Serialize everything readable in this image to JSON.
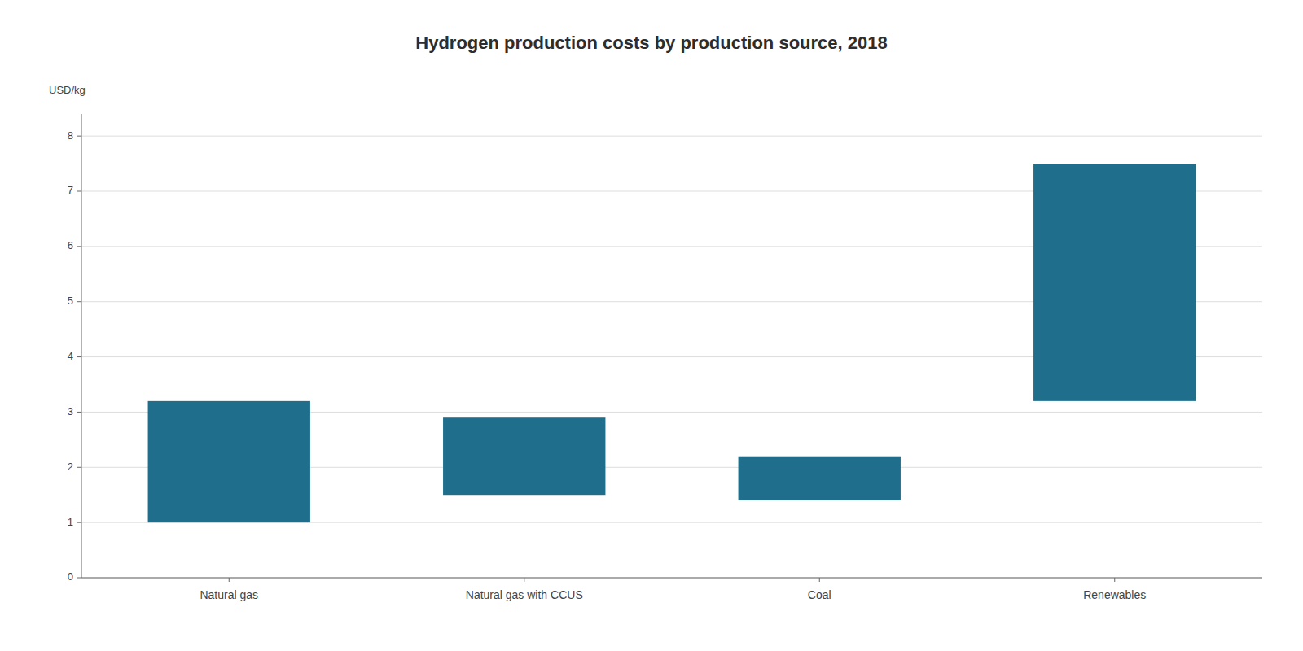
{
  "chart_data": {
    "type": "bar",
    "title": "Hydrogen production costs by production source, 2018",
    "y_label": "USD/kg",
    "categories": [
      "Natural gas",
      "Natural gas with CCUS",
      "Coal",
      "Renewables"
    ],
    "values": [
      [
        1.0,
        3.2
      ],
      [
        1.5,
        2.9
      ],
      [
        1.4,
        2.2
      ],
      [
        3.2,
        7.5
      ]
    ],
    "color": "#1e6e8c",
    "ylim": [
      0,
      8.4
    ],
    "yticks": [
      0,
      1,
      2,
      3,
      4,
      5,
      6,
      7,
      8
    ],
    "grid": true
  }
}
